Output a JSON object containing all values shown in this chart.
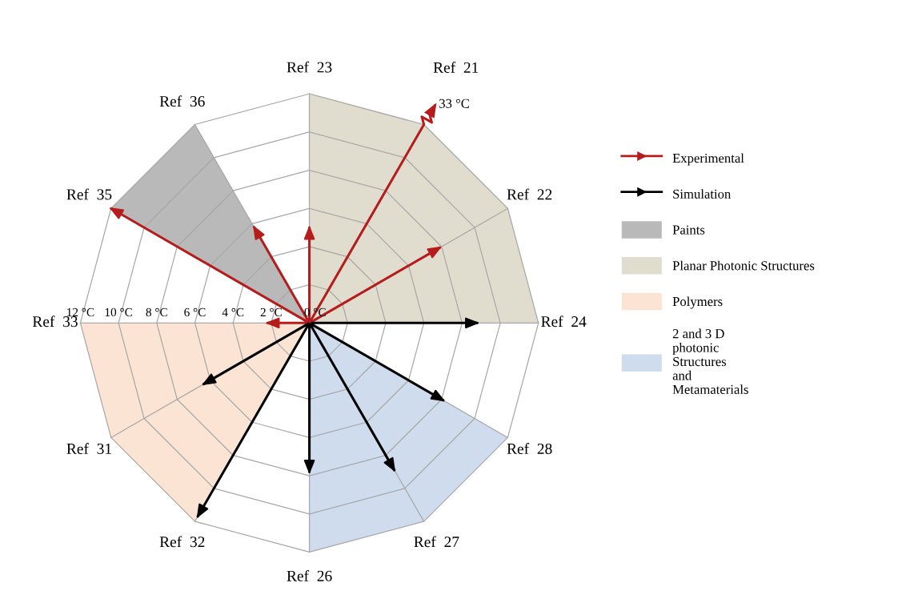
{
  "chart_data": {
    "type": "radar",
    "categories": [
      "Ref  23",
      "Ref  21",
      "Ref  22",
      "Ref  24",
      "Ref  28",
      "Ref  27",
      "Ref  26",
      "Ref  32",
      "Ref  31",
      "Ref  33",
      "Ref  35",
      "Ref  36"
    ],
    "series": [
      {
        "name": "Experimental",
        "color": "#b71c1c",
        "values": [
          5.0,
          null,
          7.9,
          null,
          null,
          null,
          null,
          null,
          null,
          2.2,
          12,
          5.8
        ]
      },
      {
        "name": "Simulation",
        "color": "#000000",
        "values": [
          null,
          null,
          null,
          8.8,
          8.1,
          8.9,
          7.8,
          11.7,
          6.4,
          null,
          null,
          null
        ]
      },
      {
        "name": "Paints",
        "type": "area",
        "color": "#b9b9b9",
        "values": [
          null,
          null,
          null,
          null,
          null,
          null,
          null,
          null,
          null,
          null,
          12,
          12
        ]
      },
      {
        "name": "Planar Photonic Structures",
        "type": "area",
        "color": "#e0ddcf",
        "values": [
          12,
          12,
          12,
          12,
          null,
          null,
          null,
          null,
          null,
          null,
          null,
          null
        ]
      },
      {
        "name": "Polymers",
        "type": "area",
        "color": "#fbe4d3",
        "values": [
          null,
          null,
          null,
          null,
          null,
          null,
          null,
          12,
          12,
          12,
          null,
          null
        ]
      },
      {
        "name": "2 and 3 D\nphotonic\nStructures\nand\nMetamaterials",
        "type": "area",
        "color": "#cfdcee",
        "values": [
          null,
          null,
          null,
          null,
          12,
          12,
          12,
          null,
          null,
          null,
          null,
          null
        ]
      }
    ],
    "annotations": [
      {
        "text": "33 °C",
        "x": "Ref  21"
      }
    ],
    "ylim": [
      0,
      12
    ],
    "yticks": [
      {
        "value": 0,
        "label": "0 °C"
      },
      {
        "value": 2,
        "label": "2 °C"
      },
      {
        "value": 4,
        "label": "4 °C"
      },
      {
        "value": 6,
        "label": "6 °C"
      },
      {
        "value": 8,
        "label": "8 °C"
      },
      {
        "value": 10,
        "label": "10 °C"
      },
      {
        "value": 12,
        "label": "12 °C"
      }
    ],
    "grid": true,
    "legend": "right"
  }
}
